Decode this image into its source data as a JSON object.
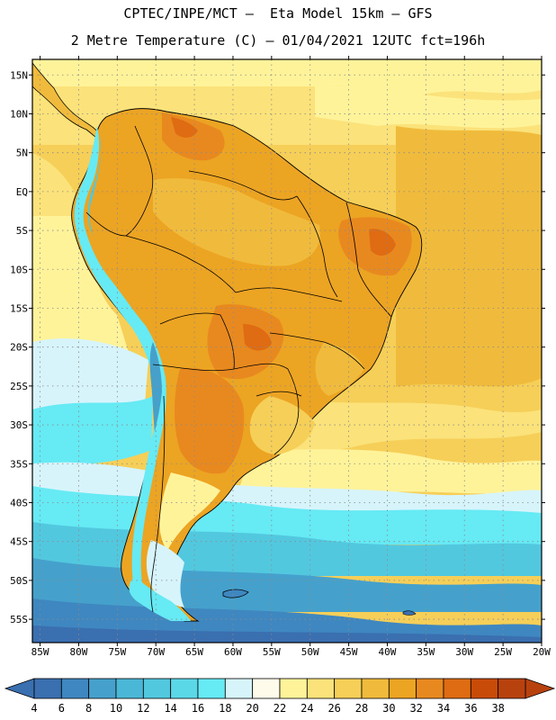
{
  "header": {
    "line1": "CPTEC/INPE/MCT –  Eta Model 15km – GFS",
    "line2": "2 Metre Temperature (C) – 01/04/2021 12UTC fct=196h"
  },
  "map": {
    "lon_range": [
      -86,
      -20
    ],
    "lat_range": [
      -58,
      17
    ],
    "lat_labels": [
      "15N",
      "10N",
      "5N",
      "EQ",
      "5S",
      "10S",
      "15S",
      "20S",
      "25S",
      "30S",
      "35S",
      "40S",
      "45S",
      "50S",
      "55S"
    ],
    "lon_labels": [
      "85W",
      "80W",
      "75W",
      "70W",
      "65W",
      "60W",
      "55W",
      "50W",
      "45W",
      "40W",
      "35W",
      "30W",
      "25W",
      "20W"
    ],
    "lat_values": [
      15,
      10,
      5,
      0,
      -5,
      -10,
      -15,
      -20,
      -25,
      -30,
      -35,
      -40,
      -45,
      -50,
      -55
    ],
    "lon_values": [
      -85,
      -80,
      -75,
      -70,
      -65,
      -60,
      -55,
      -50,
      -45,
      -40,
      -35,
      -30,
      -25,
      -20
    ]
  },
  "colorbar": {
    "labels": [
      "4",
      "6",
      "8",
      "10",
      "12",
      "14",
      "16",
      "18",
      "20",
      "22",
      "24",
      "26",
      "28",
      "30",
      "32",
      "34",
      "36",
      "38"
    ],
    "colors": [
      "#3a6fb0",
      "#3f87c0",
      "#45a1cc",
      "#4bb7d6",
      "#52c8df",
      "#5bd8e8",
      "#66eaf4",
      "#d7f4fb",
      "#fffbea",
      "#fff39a",
      "#fbe27a",
      "#f6cf58",
      "#f0bb3c",
      "#eca423",
      "#e8891f",
      "#df6b12",
      "#c94b08",
      "#b8420e"
    ],
    "low_color": "#3a6fb0",
    "high_color": "#b8420e"
  }
}
